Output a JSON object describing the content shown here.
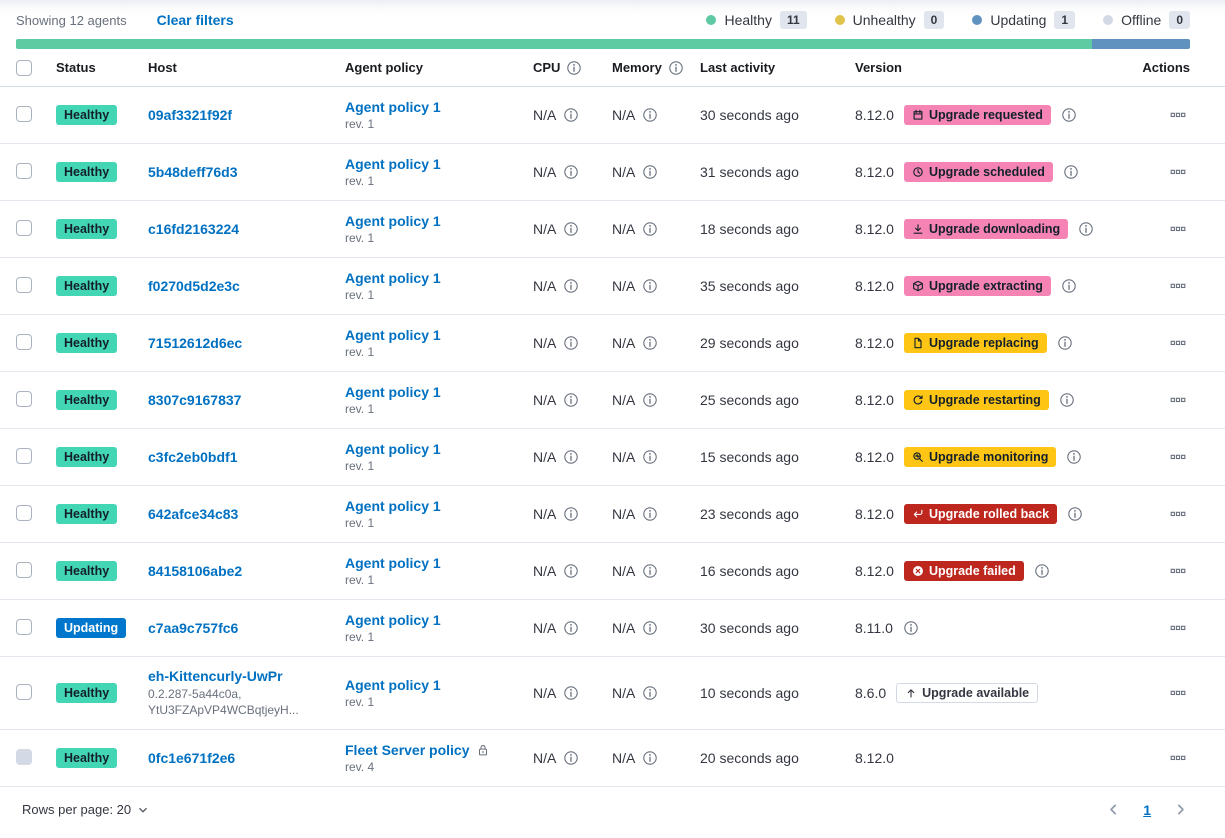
{
  "header": {
    "showing_text": "Showing 12 agents",
    "clear_filters_label": "Clear filters"
  },
  "legend": {
    "items": [
      {
        "label": "Healthy",
        "count": "11",
        "color": "#5FC9A3"
      },
      {
        "label": "Unhealthy",
        "count": "0",
        "color": "#E0C34B"
      },
      {
        "label": "Updating",
        "count": "1",
        "color": "#6092C0"
      },
      {
        "label": "Offline",
        "count": "0",
        "color": "#D3DAE6"
      }
    ]
  },
  "health_bar": {
    "segments": [
      {
        "status": "Healthy",
        "fraction": 0.9167,
        "color": "#5FCBA3"
      },
      {
        "status": "Updating",
        "fraction": 0.0833,
        "color": "#6092C0"
      }
    ]
  },
  "colors": {
    "healthy_badge": "#43D6B4",
    "updating_badge": "#0077CC",
    "pink_badge": "#F584B4",
    "warning_badge": "#FEC514",
    "danger_badge": "#BD271E",
    "link": "#0071C2"
  },
  "table": {
    "columns": [
      "Status",
      "Host",
      "Agent policy",
      "CPU",
      "Memory",
      "Last activity",
      "Version",
      "Actions"
    ],
    "rows": [
      {
        "status": "Healthy",
        "host": "09af3321f92f",
        "host_meta": null,
        "policy": "Agent policy 1",
        "policy_locked": false,
        "revision": "rev. 1",
        "cpu": "N/A",
        "memory": "N/A",
        "last_activity": "30 seconds ago",
        "version": "8.12.0",
        "upgrade_badge": {
          "label": "Upgrade requested",
          "icon": "calendar-icon",
          "style": "pink"
        },
        "version_info_icon": true,
        "checkbox_disabled": false
      },
      {
        "status": "Healthy",
        "host": "5b48deff76d3",
        "host_meta": null,
        "policy": "Agent policy 1",
        "policy_locked": false,
        "revision": "rev. 1",
        "cpu": "N/A",
        "memory": "N/A",
        "last_activity": "31 seconds ago",
        "version": "8.12.0",
        "upgrade_badge": {
          "label": "Upgrade scheduled",
          "icon": "clock-icon",
          "style": "pink"
        },
        "version_info_icon": true,
        "checkbox_disabled": false
      },
      {
        "status": "Healthy",
        "host": "c16fd2163224",
        "host_meta": null,
        "policy": "Agent policy 1",
        "policy_locked": false,
        "revision": "rev. 1",
        "cpu": "N/A",
        "memory": "N/A",
        "last_activity": "18 seconds ago",
        "version": "8.12.0",
        "upgrade_badge": {
          "label": "Upgrade downloading",
          "icon": "download-icon",
          "style": "pink"
        },
        "version_info_icon": true,
        "checkbox_disabled": false
      },
      {
        "status": "Healthy",
        "host": "f0270d5d2e3c",
        "host_meta": null,
        "policy": "Agent policy 1",
        "policy_locked": false,
        "revision": "rev. 1",
        "cpu": "N/A",
        "memory": "N/A",
        "last_activity": "35 seconds ago",
        "version": "8.12.0",
        "upgrade_badge": {
          "label": "Upgrade extracting",
          "icon": "package-icon",
          "style": "pink"
        },
        "version_info_icon": true,
        "checkbox_disabled": false
      },
      {
        "status": "Healthy",
        "host": "71512612d6ec",
        "host_meta": null,
        "policy": "Agent policy 1",
        "policy_locked": false,
        "revision": "rev. 1",
        "cpu": "N/A",
        "memory": "N/A",
        "last_activity": "29 seconds ago",
        "version": "8.12.0",
        "upgrade_badge": {
          "label": "Upgrade replacing",
          "icon": "document-icon",
          "style": "warning"
        },
        "version_info_icon": true,
        "checkbox_disabled": false
      },
      {
        "status": "Healthy",
        "host": "8307c9167837",
        "host_meta": null,
        "policy": "Agent policy 1",
        "policy_locked": false,
        "revision": "rev. 1",
        "cpu": "N/A",
        "memory": "N/A",
        "last_activity": "25 seconds ago",
        "version": "8.12.0",
        "upgrade_badge": {
          "label": "Upgrade restarting",
          "icon": "refresh-icon",
          "style": "warning"
        },
        "version_info_icon": true,
        "checkbox_disabled": false
      },
      {
        "status": "Healthy",
        "host": "c3fc2eb0bdf1",
        "host_meta": null,
        "policy": "Agent policy 1",
        "policy_locked": false,
        "revision": "rev. 1",
        "cpu": "N/A",
        "memory": "N/A",
        "last_activity": "15 seconds ago",
        "version": "8.12.0",
        "upgrade_badge": {
          "label": "Upgrade monitoring",
          "icon": "inspect-icon",
          "style": "warning"
        },
        "version_info_icon": true,
        "checkbox_disabled": false
      },
      {
        "status": "Healthy",
        "host": "642afce34c83",
        "host_meta": null,
        "policy": "Agent policy 1",
        "policy_locked": false,
        "revision": "rev. 1",
        "cpu": "N/A",
        "memory": "N/A",
        "last_activity": "23 seconds ago",
        "version": "8.12.0",
        "upgrade_badge": {
          "label": "Upgrade rolled back",
          "icon": "return-icon",
          "style": "danger"
        },
        "version_info_icon": true,
        "checkbox_disabled": false
      },
      {
        "status": "Healthy",
        "host": "84158106abe2",
        "host_meta": null,
        "policy": "Agent policy 1",
        "policy_locked": false,
        "revision": "rev. 1",
        "cpu": "N/A",
        "memory": "N/A",
        "last_activity": "16 seconds ago",
        "version": "8.12.0",
        "upgrade_badge": {
          "label": "Upgrade failed",
          "icon": "error-icon",
          "style": "danger"
        },
        "version_info_icon": true,
        "checkbox_disabled": false
      },
      {
        "status": "Updating",
        "host": "c7aa9c757fc6",
        "host_meta": null,
        "policy": "Agent policy 1",
        "policy_locked": false,
        "revision": "rev. 1",
        "cpu": "N/A",
        "memory": "N/A",
        "last_activity": "30 seconds ago",
        "version": "8.11.0",
        "upgrade_badge": null,
        "version_info_icon": true,
        "checkbox_disabled": false
      },
      {
        "status": "Healthy",
        "host": "eh-Kittencurly-UwPr",
        "host_meta": [
          "0.2.287-5a44c0a,",
          "YtU3FZApVP4WCBqtjeyH..."
        ],
        "policy": "Agent policy 1",
        "policy_locked": false,
        "revision": "rev. 1",
        "cpu": "N/A",
        "memory": "N/A",
        "last_activity": "10 seconds ago",
        "version": "8.6.0",
        "upgrade_badge": {
          "label": "Upgrade available",
          "icon": "arrow-up-icon",
          "style": "hollow"
        },
        "version_info_icon": false,
        "checkbox_disabled": false
      },
      {
        "status": "Healthy",
        "host": "0fc1e671f2e6",
        "host_meta": null,
        "policy": "Fleet Server policy",
        "policy_locked": true,
        "revision": "rev. 4",
        "cpu": "N/A",
        "memory": "N/A",
        "last_activity": "20 seconds ago",
        "version": "8.12.0",
        "upgrade_badge": null,
        "version_info_icon": false,
        "checkbox_disabled": true
      }
    ]
  },
  "footer": {
    "rows_per_page_label": "Rows per page: 20",
    "page": "1"
  }
}
